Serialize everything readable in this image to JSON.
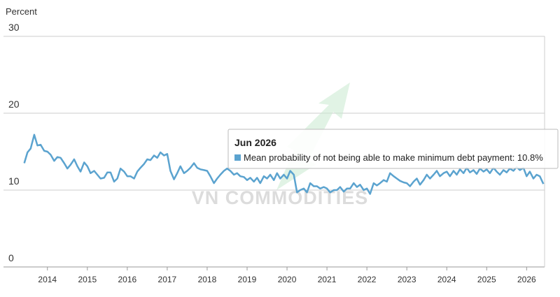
{
  "chart_data": {
    "type": "line",
    "y_label": "Percent",
    "watermark": "VN COMMODITIES",
    "tooltip": {
      "title": "Jun 2026",
      "text": "Mean probability of not being able to make minimum debt payment: 10.8%"
    },
    "color": "#5ba3cf",
    "xlim": [
      2012.9,
      2026.45
    ],
    "xticks": [
      2014,
      2015,
      2016,
      2017,
      2018,
      2019,
      2020,
      2021,
      2022,
      2023,
      2024,
      2025,
      2026
    ],
    "ylim": [
      0,
      30
    ],
    "yticks": [
      0,
      10,
      20,
      30
    ],
    "grid": true,
    "x": [
      2013.42,
      2013.5,
      2013.58,
      2013.67,
      2013.75,
      2013.83,
      2013.92,
      2014,
      2014.08,
      2014.17,
      2014.25,
      2014.33,
      2014.42,
      2014.5,
      2014.58,
      2014.67,
      2014.75,
      2014.83,
      2014.92,
      2015,
      2015.08,
      2015.17,
      2015.25,
      2015.33,
      2015.42,
      2015.5,
      2015.58,
      2015.67,
      2015.75,
      2015.83,
      2015.92,
      2016,
      2016.08,
      2016.17,
      2016.25,
      2016.33,
      2016.42,
      2016.5,
      2016.58,
      2016.67,
      2016.75,
      2016.83,
      2016.92,
      2017,
      2017.08,
      2017.17,
      2017.25,
      2017.33,
      2017.42,
      2017.5,
      2017.58,
      2017.67,
      2017.75,
      2017.83,
      2017.92,
      2018,
      2018.08,
      2018.17,
      2018.25,
      2018.33,
      2018.42,
      2018.5,
      2018.58,
      2018.67,
      2018.75,
      2018.83,
      2018.92,
      2019,
      2019.08,
      2019.17,
      2019.25,
      2019.33,
      2019.42,
      2019.5,
      2019.58,
      2019.67,
      2019.75,
      2019.83,
      2019.92,
      2020,
      2020.08,
      2020.17,
      2020.25,
      2020.33,
      2020.42,
      2020.5,
      2020.58,
      2020.67,
      2020.75,
      2020.83,
      2020.92,
      2021,
      2021.08,
      2021.17,
      2021.25,
      2021.33,
      2021.42,
      2021.5,
      2021.58,
      2021.67,
      2021.75,
      2021.83,
      2021.92,
      2022,
      2022.08,
      2022.17,
      2022.25,
      2022.33,
      2022.42,
      2022.5,
      2022.58,
      2022.67,
      2022.75,
      2022.83,
      2022.92,
      2023,
      2023.08,
      2023.17,
      2023.25,
      2023.33,
      2023.42,
      2023.5,
      2023.58,
      2023.67,
      2023.75,
      2023.83,
      2023.92,
      2024,
      2024.08,
      2024.17,
      2024.25,
      2024.33,
      2024.42,
      2024.5,
      2024.58,
      2024.67,
      2024.75,
      2024.83,
      2024.92,
      2025,
      2025.08,
      2025.17,
      2025.25,
      2025.33,
      2025.42,
      2025.5,
      2025.58,
      2025.67,
      2025.75,
      2025.83,
      2025.92,
      2026,
      2026.08,
      2026.17,
      2026.25,
      2026.33,
      2026.42
    ],
    "values": [
      13.5,
      14.9,
      15.4,
      17.2,
      15.8,
      15.9,
      15.1,
      15.0,
      14.6,
      13.8,
      14.3,
      14.2,
      13.5,
      12.8,
      13.3,
      14.0,
      13.1,
      12.4,
      13.6,
      13.1,
      12.2,
      12.5,
      12.0,
      11.5,
      11.6,
      12.3,
      12.3,
      11.1,
      11.5,
      12.8,
      12.4,
      11.8,
      11.8,
      11.5,
      12.4,
      12.9,
      13.4,
      14.0,
      13.9,
      14.5,
      14.2,
      14.9,
      14.5,
      14.7,
      12.5,
      11.4,
      12.2,
      13.1,
      12.2,
      12.5,
      12.9,
      13.5,
      12.9,
      12.7,
      12.6,
      12.5,
      11.8,
      10.9,
      11.5,
      12.0,
      12.5,
      12.8,
      12.5,
      12.0,
      12.2,
      11.8,
      11.7,
      11.3,
      11.6,
      11.1,
      11.6,
      10.9,
      11.8,
      11.5,
      12.0,
      11.3,
      12.2,
      11.5,
      12.0,
      11.5,
      12.5,
      12.0,
      9.7,
      10.0,
      10.2,
      9.7,
      10.9,
      10.5,
      10.5,
      10.2,
      10.4,
      10.2,
      9.7,
      10.0,
      10.0,
      10.4,
      9.8,
      10.2,
      10.2,
      10.9,
      10.4,
      10.7,
      10.0,
      10.2,
      9.5,
      10.9,
      10.6,
      10.9,
      11.3,
      11.1,
      12.2,
      11.8,
      11.5,
      11.2,
      11.0,
      10.9,
      10.5,
      11.1,
      11.5,
      10.7,
      11.3,
      12.0,
      11.5,
      12.0,
      12.5,
      11.8,
      12.2,
      12.4,
      11.8,
      12.5,
      12.0,
      12.7,
      12.2,
      12.9,
      12.3,
      12.6,
      12.1,
      12.8,
      12.4,
      12.7,
      12.2,
      12.9,
      12.4,
      12.0,
      12.6,
      12.3,
      12.8,
      12.5,
      13.0,
      12.6,
      12.9,
      11.8,
      12.4,
      11.5,
      12.0,
      11.8,
      10.8
    ]
  }
}
